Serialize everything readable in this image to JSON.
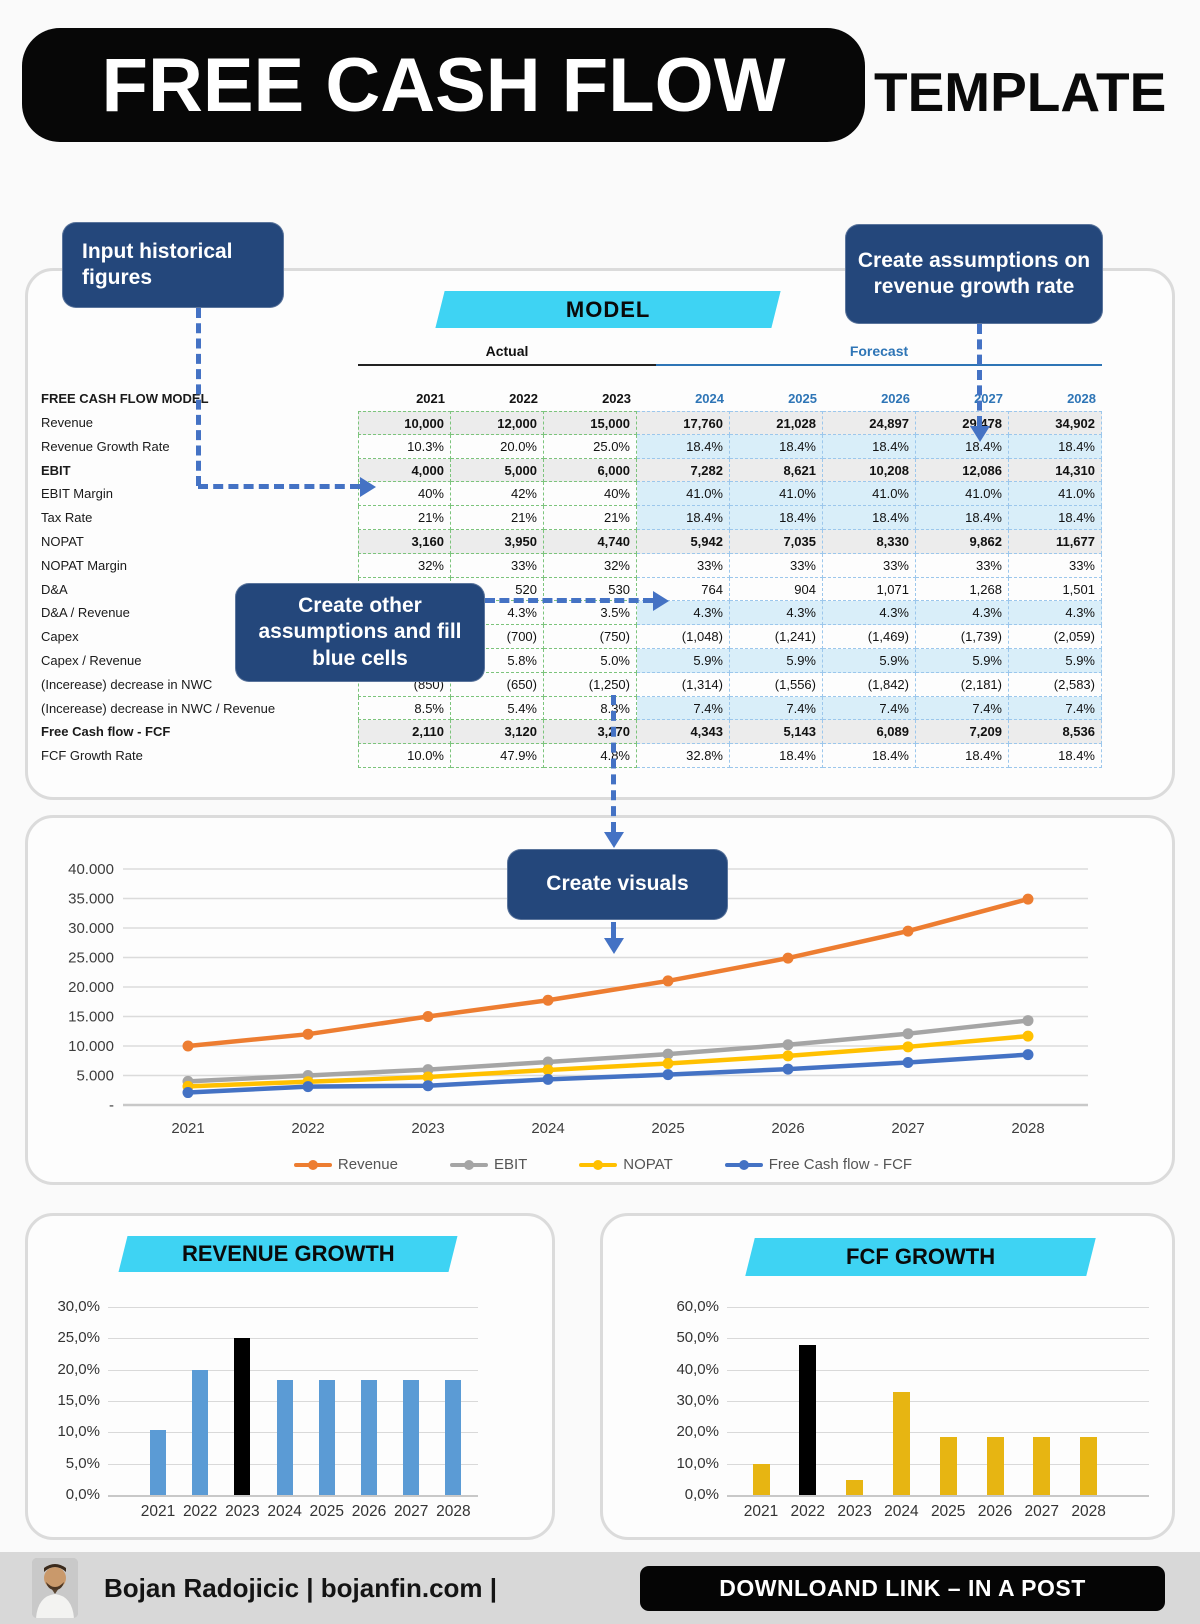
{
  "header": {
    "title": "FREE CASH FLOW",
    "suffix": "TEMPLATE"
  },
  "callouts": {
    "input_historical": "Input historical figures",
    "create_assumptions": "Create assumptions on revenue growth rate",
    "create_other": "Create other assumptions and fill blue cells",
    "create_visuals": "Create visuals"
  },
  "model": {
    "banner": "MODEL",
    "group_headers": {
      "actual": "Actual",
      "forecast": "Forecast"
    },
    "header_label": "FREE CASH FLOW MODEL",
    "years": [
      "2021",
      "2022",
      "2023",
      "2024",
      "2025",
      "2026",
      "2027",
      "2028"
    ],
    "actual_years": 3,
    "rows": [
      {
        "label": "Revenue",
        "style": "total",
        "label_bold": false,
        "values": [
          "10,000",
          "12,000",
          "15,000",
          "17,760",
          "21,028",
          "24,897",
          "29,478",
          "34,902"
        ]
      },
      {
        "label": "Revenue Growth Rate",
        "style": "assumption",
        "label_bold": false,
        "values": [
          "10.3%",
          "20.0%",
          "25.0%",
          "18.4%",
          "18.4%",
          "18.4%",
          "18.4%",
          "18.4%"
        ]
      },
      {
        "label": "EBIT",
        "style": "total",
        "label_bold": true,
        "values": [
          "4,000",
          "5,000",
          "6,000",
          "7,282",
          "8,621",
          "10,208",
          "12,086",
          "14,310"
        ]
      },
      {
        "label": "EBIT Margin",
        "style": "assumption",
        "label_bold": false,
        "values": [
          "40%",
          "42%",
          "40%",
          "41.0%",
          "41.0%",
          "41.0%",
          "41.0%",
          "41.0%"
        ]
      },
      {
        "label": "Tax Rate",
        "style": "assumption",
        "label_bold": false,
        "values": [
          "21%",
          "21%",
          "21%",
          "18.4%",
          "18.4%",
          "18.4%",
          "18.4%",
          "18.4%"
        ]
      },
      {
        "label": "NOPAT",
        "style": "total",
        "label_bold": false,
        "values": [
          "3,160",
          "3,950",
          "4,740",
          "5,942",
          "7,035",
          "8,330",
          "9,862",
          "11,677"
        ]
      },
      {
        "label": "NOPAT Margin",
        "style": "plain",
        "label_bold": false,
        "values": [
          "32%",
          "33%",
          "32%",
          "33%",
          "33%",
          "33%",
          "33%",
          "33%"
        ]
      },
      {
        "label": "D&A",
        "style": "plain",
        "label_bold": false,
        "values": [
          "",
          "520",
          "530",
          "764",
          "904",
          "1,071",
          "1,268",
          "1,501"
        ]
      },
      {
        "label": "D&A / Revenue",
        "style": "assumption",
        "label_bold": false,
        "values": [
          "",
          "4.3%",
          "3.5%",
          "4.3%",
          "4.3%",
          "4.3%",
          "4.3%",
          "4.3%"
        ]
      },
      {
        "label": "Capex",
        "style": "plain",
        "label_bold": false,
        "values": [
          "",
          "(700)",
          "(750)",
          "(1,048)",
          "(1,241)",
          "(1,469)",
          "(1,739)",
          "(2,059)"
        ]
      },
      {
        "label": "Capex / Revenue",
        "style": "assumption",
        "label_bold": false,
        "values": [
          "",
          "5.8%",
          "5.0%",
          "5.9%",
          "5.9%",
          "5.9%",
          "5.9%",
          "5.9%"
        ]
      },
      {
        "label": "(Incerease) decrease in NWC",
        "style": "plain",
        "label_bold": false,
        "values": [
          "(850)",
          "(650)",
          "(1,250)",
          "(1,314)",
          "(1,556)",
          "(1,842)",
          "(2,181)",
          "(2,583)"
        ]
      },
      {
        "label": "(Incerease) decrease in NWC / Revenue",
        "style": "assumption",
        "label_bold": false,
        "values": [
          "8.5%",
          "5.4%",
          "8.3%",
          "7.4%",
          "7.4%",
          "7.4%",
          "7.4%",
          "7.4%"
        ]
      },
      {
        "label": "Free Cash flow - FCF",
        "style": "total",
        "label_bold": true,
        "values": [
          "2,110",
          "3,120",
          "3,270",
          "4,343",
          "5,143",
          "6,089",
          "7,209",
          "8,536"
        ]
      },
      {
        "label": "FCF Growth Rate",
        "style": "plain",
        "label_bold": false,
        "values": [
          "10.0%",
          "47.9%",
          "4.8%",
          "32.8%",
          "18.4%",
          "18.4%",
          "18.4%",
          "18.4%"
        ]
      }
    ]
  },
  "chart_data": [
    {
      "type": "line",
      "title": "",
      "x": [
        "2021",
        "2022",
        "2023",
        "2024",
        "2025",
        "2026",
        "2027",
        "2028"
      ],
      "series": [
        {
          "name": "Revenue",
          "color": "#ED7D31",
          "values": [
            10000,
            12000,
            15000,
            17760,
            21028,
            24897,
            29478,
            34902
          ]
        },
        {
          "name": "EBIT",
          "color": "#A5A5A5",
          "values": [
            4000,
            5000,
            6000,
            7282,
            8621,
            10208,
            12086,
            14310
          ]
        },
        {
          "name": "NOPAT",
          "color": "#FFC000",
          "values": [
            3160,
            3950,
            4740,
            5942,
            7035,
            8330,
            9862,
            11677
          ]
        },
        {
          "name": "Free Cash flow - FCF",
          "color": "#4472C4",
          "values": [
            2110,
            3120,
            3270,
            4343,
            5143,
            6089,
            7209,
            8536
          ]
        }
      ],
      "ylim": [
        0,
        40000
      ],
      "y_ticks": {
        "values": [
          0,
          5000,
          10000,
          15000,
          20000,
          25000,
          30000,
          35000,
          40000
        ],
        "labels": [
          "-",
          "5.000",
          "10.000",
          "15.000",
          "20.000",
          "25.000",
          "30.000",
          "35.000",
          "40.000"
        ]
      },
      "grid": true,
      "legend_position": "bottom"
    },
    {
      "type": "bar",
      "title": "REVENUE GROWTH",
      "categories": [
        "2021",
        "2022",
        "2023",
        "2024",
        "2025",
        "2026",
        "2027",
        "2028"
      ],
      "values": [
        10.3,
        20.0,
        25.0,
        18.4,
        18.4,
        18.4,
        18.4,
        18.4
      ],
      "unit": "%",
      "bar_color": "#5B9BD5",
      "highlight_index": 2,
      "highlight_color": "#000000",
      "ylim": [
        0,
        30
      ],
      "y_ticks": {
        "values": [
          0,
          5,
          10,
          15,
          20,
          25,
          30
        ],
        "labels": [
          "0,0%",
          "5,0%",
          "10,0%",
          "15,0%",
          "20,0%",
          "25,0%",
          "30,0%"
        ]
      },
      "grid": true
    },
    {
      "type": "bar",
      "title": "FCF GROWTH",
      "categories": [
        "2021",
        "2022",
        "2023",
        "2024",
        "2025",
        "2026",
        "2027",
        "2028"
      ],
      "values": [
        10.0,
        47.9,
        4.8,
        32.8,
        18.4,
        18.4,
        18.4,
        18.4
      ],
      "unit": "%",
      "bar_color": "#E7B512",
      "highlight_index": 1,
      "highlight_color": "#000000",
      "ylim": [
        0,
        60
      ],
      "y_ticks": {
        "values": [
          0,
          10,
          20,
          30,
          40,
          50,
          60
        ],
        "labels": [
          "0,0%",
          "10,0%",
          "20,0%",
          "30,0%",
          "40,0%",
          "50,0%",
          "60,0%"
        ]
      },
      "grid": true
    }
  ],
  "footer": {
    "author": "Bojan Radojicic | bojanfin.com |",
    "download_label": "DOWNLOAND LINK – IN A POST"
  },
  "colors": {
    "accent_cyan": "#3ED3F3",
    "callout_navy": "#24477B",
    "arrow_blue": "#4472C4",
    "forecast_blue": "#2E75B6",
    "total_row_gray": "#ECECEC",
    "assumption_fill": "#D9EEF9",
    "series_revenue": "#ED7D31",
    "series_ebit": "#A5A5A5",
    "series_nopat": "#FFC000",
    "series_fcf": "#4472C4",
    "bar_revenue_growth": "#5B9BD5",
    "bar_fcf_growth": "#E7B512",
    "bar_highlight": "#000000"
  }
}
